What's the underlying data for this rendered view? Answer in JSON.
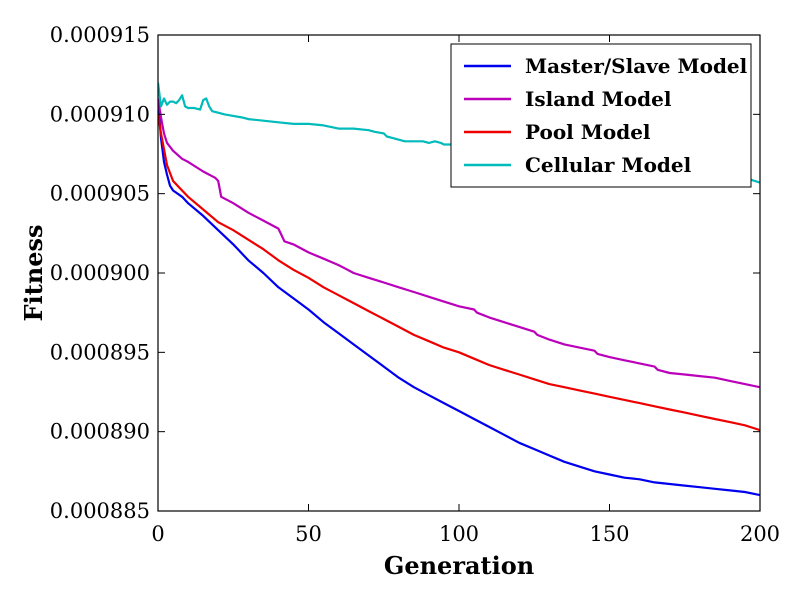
{
  "chart_data": {
    "type": "line",
    "title": "",
    "xlabel": "Generation",
    "ylabel": "Fitness",
    "xlim": [
      0,
      200
    ],
    "ylim": [
      0.000885,
      0.000915
    ],
    "x_ticks": [
      0,
      50,
      100,
      150,
      200
    ],
    "x_tick_labels": [
      "0",
      "50",
      "100",
      "150",
      "200"
    ],
    "y_ticks": [
      0.000885,
      0.00089,
      0.000895,
      0.0009,
      0.000905,
      0.00091,
      0.000915
    ],
    "y_tick_labels": [
      "0.000885",
      "0.000890",
      "0.000895",
      "0.000900",
      "0.000905",
      "0.000910",
      "0.000915"
    ],
    "grid": false,
    "legend_position": "top-right",
    "series": [
      {
        "name": "Master/Slave Model",
        "color": "#0000ee",
        "x": [
          0,
          1,
          2,
          3,
          4,
          5,
          8,
          10,
          15,
          20,
          25,
          30,
          35,
          40,
          45,
          50,
          55,
          60,
          65,
          70,
          75,
          80,
          85,
          90,
          95,
          100,
          105,
          110,
          115,
          120,
          125,
          130,
          135,
          140,
          145,
          150,
          155,
          160,
          165,
          170,
          175,
          180,
          185,
          190,
          195,
          200
        ],
        "y": [
          0.000911,
          0.0009085,
          0.000907,
          0.0009062,
          0.0009055,
          0.0009052,
          0.0009048,
          0.0009044,
          0.0009036,
          0.0009027,
          0.0009018,
          0.0009008,
          0.0009,
          0.0008991,
          0.0008984,
          0.0008977,
          0.0008969,
          0.0008962,
          0.0008955,
          0.0008948,
          0.0008941,
          0.0008934,
          0.0008928,
          0.0008923,
          0.0008918,
          0.0008913,
          0.0008908,
          0.0008903,
          0.0008898,
          0.0008893,
          0.0008889,
          0.0008885,
          0.0008881,
          0.0008878,
          0.0008875,
          0.0008873,
          0.0008871,
          0.000887,
          0.0008868,
          0.0008867,
          0.0008866,
          0.0008865,
          0.0008864,
          0.0008863,
          0.0008862,
          0.000886
        ]
      },
      {
        "name": "Island Model",
        "color": "#bb00bb",
        "x": [
          0,
          1,
          2,
          3,
          5,
          8,
          10,
          15,
          19,
          20,
          21,
          25,
          30,
          35,
          40,
          41,
          42,
          45,
          50,
          55,
          60,
          62,
          65,
          70,
          75,
          80,
          85,
          90,
          95,
          100,
          105,
          106,
          110,
          115,
          120,
          125,
          126,
          130,
          135,
          140,
          145,
          146,
          150,
          155,
          160,
          165,
          166,
          170,
          175,
          180,
          185,
          190,
          195,
          200
        ],
        "y": [
          0.000911,
          0.0009098,
          0.0009088,
          0.0009082,
          0.0009077,
          0.0009072,
          0.000907,
          0.0009064,
          0.000906,
          0.0009058,
          0.0009048,
          0.0009044,
          0.0009038,
          0.0009033,
          0.0009028,
          0.0009024,
          0.000902,
          0.0009018,
          0.0009013,
          0.0009009,
          0.0009005,
          0.0009003,
          0.0009,
          0.0008997,
          0.0008994,
          0.0008991,
          0.0008988,
          0.0008985,
          0.0008982,
          0.0008979,
          0.0008977,
          0.0008975,
          0.0008972,
          0.0008969,
          0.0008966,
          0.0008963,
          0.0008961,
          0.0008958,
          0.0008955,
          0.0008953,
          0.0008951,
          0.0008949,
          0.0008947,
          0.0008945,
          0.0008943,
          0.0008941,
          0.0008939,
          0.0008937,
          0.0008936,
          0.0008935,
          0.0008934,
          0.0008932,
          0.000893,
          0.0008928
        ]
      },
      {
        "name": "Pool Model",
        "color": "#ee0000",
        "x": [
          0,
          1,
          2,
          3,
          5,
          8,
          10,
          15,
          20,
          25,
          30,
          35,
          40,
          45,
          50,
          55,
          60,
          65,
          70,
          75,
          80,
          85,
          90,
          95,
          100,
          105,
          110,
          115,
          120,
          125,
          130,
          135,
          140,
          145,
          150,
          155,
          160,
          165,
          170,
          175,
          180,
          185,
          190,
          195,
          200
        ],
        "y": [
          0.00091,
          0.0009088,
          0.0009078,
          0.0009068,
          0.0009058,
          0.0009052,
          0.0009048,
          0.000904,
          0.0009032,
          0.0009027,
          0.0009021,
          0.0009015,
          0.0009008,
          0.0009002,
          0.0008997,
          0.0008991,
          0.0008986,
          0.0008981,
          0.0008976,
          0.0008971,
          0.0008966,
          0.0008961,
          0.0008957,
          0.0008953,
          0.000895,
          0.0008946,
          0.0008942,
          0.0008939,
          0.0008936,
          0.0008933,
          0.000893,
          0.0008928,
          0.0008926,
          0.0008924,
          0.0008922,
          0.000892,
          0.0008918,
          0.0008916,
          0.0008914,
          0.0008912,
          0.000891,
          0.0008908,
          0.0008906,
          0.0008904,
          0.0008901
        ]
      },
      {
        "name": "Cellular Model",
        "color": "#00bbbb",
        "x": [
          0,
          1,
          2,
          3,
          4,
          5,
          6,
          7,
          8,
          9,
          10,
          12,
          14,
          15,
          16,
          17,
          18,
          20,
          22,
          25,
          28,
          30,
          35,
          40,
          45,
          50,
          55,
          60,
          65,
          70,
          72,
          75,
          76,
          78,
          80,
          82,
          85,
          88,
          90,
          92,
          94,
          95,
          97,
          100,
          105,
          110,
          115,
          120,
          125,
          130,
          135,
          140,
          145,
          150,
          155,
          160,
          165,
          170,
          175,
          180,
          185,
          190,
          195,
          200
        ],
        "y": [
          0.000912,
          0.0009105,
          0.000911,
          0.0009106,
          0.0009108,
          0.0009108,
          0.0009107,
          0.0009109,
          0.0009112,
          0.0009105,
          0.0009104,
          0.0009104,
          0.0009103,
          0.0009109,
          0.000911,
          0.0009105,
          0.0009102,
          0.0009101,
          0.00091,
          0.0009099,
          0.0009098,
          0.0009097,
          0.0009096,
          0.0009095,
          0.0009094,
          0.0009094,
          0.0009093,
          0.0009091,
          0.0009091,
          0.000909,
          0.0009089,
          0.0009088,
          0.0009086,
          0.0009085,
          0.0009084,
          0.0009083,
          0.0009083,
          0.0009083,
          0.0009082,
          0.0009083,
          0.0009082,
          0.0009081,
          0.0009081,
          0.0009081,
          0.0009079,
          0.0009078,
          0.0009077,
          0.0009076,
          0.0009075,
          0.0009074,
          0.0009072,
          0.0009071,
          0.0009069,
          0.0009068,
          0.0009067,
          0.0009066,
          0.0009064,
          0.0009063,
          0.0009062,
          0.0009061,
          0.000906,
          0.000906,
          0.000906,
          0.0009057
        ]
      }
    ]
  }
}
